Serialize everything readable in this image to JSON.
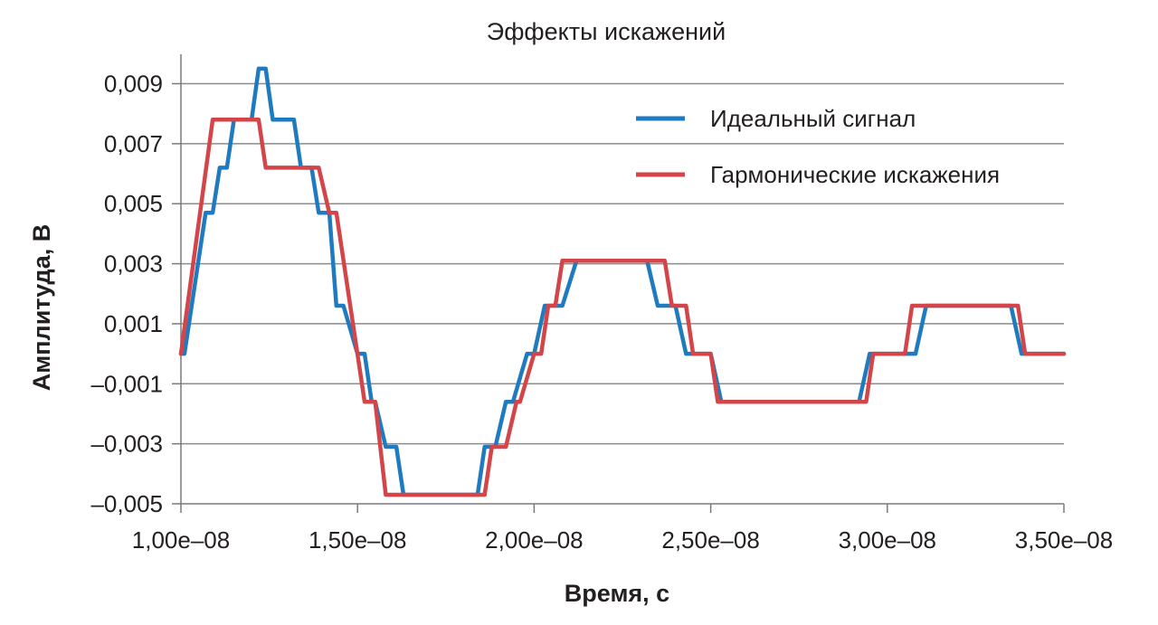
{
  "chart_data": {
    "type": "line",
    "title": "Эффекты искажений",
    "xlabel": "Время, с",
    "ylabel": "Амплитуда, В",
    "x_ticks": [
      "1,00e–08",
      "1,50e–08",
      "2,00e–08",
      "2,50e–08",
      "3,00e–08",
      "3,50e–08"
    ],
    "y_ticks": [
      "0,009",
      "0,007",
      "0,005",
      "0,003",
      "0,001",
      "–0,001",
      "–0,003",
      "–0,005"
    ],
    "xlim": [
      1e-08,
      3.5e-08
    ],
    "ylim": [
      -0.005,
      0.01
    ],
    "grid": "horizontal",
    "legend_position": "top-right",
    "series": [
      {
        "name": "Идеальный сигнал",
        "color": "#1f7bbf",
        "points": [
          [
            1e-08,
            0.0
          ],
          [
            1.01e-08,
            0.0
          ],
          [
            1.07e-08,
            0.0047
          ],
          [
            1.09e-08,
            0.0047
          ],
          [
            1.11e-08,
            0.0062
          ],
          [
            1.13e-08,
            0.0062
          ],
          [
            1.15e-08,
            0.0078
          ],
          [
            1.2e-08,
            0.0078
          ],
          [
            1.22e-08,
            0.0095
          ],
          [
            1.24e-08,
            0.0095
          ],
          [
            1.26e-08,
            0.0078
          ],
          [
            1.32e-08,
            0.0078
          ],
          [
            1.34e-08,
            0.0062
          ],
          [
            1.37e-08,
            0.0062
          ],
          [
            1.39e-08,
            0.0047
          ],
          [
            1.42e-08,
            0.0047
          ],
          [
            1.44e-08,
            0.0016
          ],
          [
            1.46e-08,
            0.0016
          ],
          [
            1.5e-08,
            0.0
          ],
          [
            1.52e-08,
            0.0
          ],
          [
            1.54e-08,
            -0.0016
          ],
          [
            1.55e-08,
            -0.0016
          ],
          [
            1.58e-08,
            -0.0031
          ],
          [
            1.61e-08,
            -0.0031
          ],
          [
            1.63e-08,
            -0.0047
          ],
          [
            1.84e-08,
            -0.0047
          ],
          [
            1.86e-08,
            -0.0031
          ],
          [
            1.89e-08,
            -0.0031
          ],
          [
            1.92e-08,
            -0.0016
          ],
          [
            1.94e-08,
            -0.0016
          ],
          [
            1.98e-08,
            0.0
          ],
          [
            2e-08,
            0.0
          ],
          [
            2.03e-08,
            0.0016
          ],
          [
            2.08e-08,
            0.0016
          ],
          [
            2.12e-08,
            0.0031
          ],
          [
            2.32e-08,
            0.0031
          ],
          [
            2.35e-08,
            0.0016
          ],
          [
            2.4e-08,
            0.0016
          ],
          [
            2.43e-08,
            0.0
          ],
          [
            2.5e-08,
            0.0
          ],
          [
            2.53e-08,
            -0.0016
          ],
          [
            2.92e-08,
            -0.0016
          ],
          [
            2.95e-08,
            0.0
          ],
          [
            3.08e-08,
            0.0
          ],
          [
            3.11e-08,
            0.0016
          ],
          [
            3.35e-08,
            0.0016
          ],
          [
            3.38e-08,
            0.0
          ],
          [
            3.5e-08,
            0.0
          ]
        ]
      },
      {
        "name": "Гармонические искажения",
        "color": "#d4454a",
        "points": [
          [
            1e-08,
            0.0
          ],
          [
            1.09e-08,
            0.0078
          ],
          [
            1.22e-08,
            0.0078
          ],
          [
            1.24e-08,
            0.0062
          ],
          [
            1.39e-08,
            0.0062
          ],
          [
            1.42e-08,
            0.0047
          ],
          [
            1.44e-08,
            0.0047
          ],
          [
            1.52e-08,
            -0.0016
          ],
          [
            1.55e-08,
            -0.0016
          ],
          [
            1.58e-08,
            -0.0047
          ],
          [
            1.86e-08,
            -0.0047
          ],
          [
            1.88e-08,
            -0.0031
          ],
          [
            1.92e-08,
            -0.0031
          ],
          [
            1.95e-08,
            -0.0016
          ],
          [
            1.96e-08,
            -0.0016
          ],
          [
            2e-08,
            0.0
          ],
          [
            2.02e-08,
            0.0
          ],
          [
            2.04e-08,
            0.0016
          ],
          [
            2.06e-08,
            0.0016
          ],
          [
            2.08e-08,
            0.0031
          ],
          [
            2.37e-08,
            0.0031
          ],
          [
            2.39e-08,
            0.0016
          ],
          [
            2.43e-08,
            0.0016
          ],
          [
            2.45e-08,
            0.0
          ],
          [
            2.5e-08,
            0.0
          ],
          [
            2.52e-08,
            -0.0016
          ],
          [
            2.94e-08,
            -0.0016
          ],
          [
            2.96e-08,
            0.0
          ],
          [
            3.05e-08,
            0.0
          ],
          [
            3.07e-08,
            0.0016
          ],
          [
            3.37e-08,
            0.0016
          ],
          [
            3.39e-08,
            0.0
          ],
          [
            3.5e-08,
            0.0
          ]
        ]
      }
    ]
  }
}
